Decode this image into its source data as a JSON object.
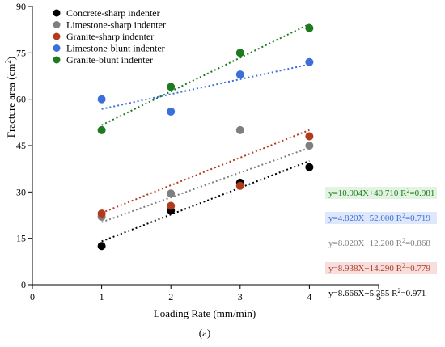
{
  "chart_data": {
    "type": "scatter",
    "xlabel": "Loading Rate (mm/min)",
    "ylabel_main": "Fracture area (cm",
    "ylabel_sup": "2",
    "ylabel_tail": ")",
    "caption": "(a)",
    "xlim": [
      0,
      5
    ],
    "ylim": [
      0,
      90
    ],
    "x_ticks": [
      0,
      1,
      2,
      3,
      4,
      5
    ],
    "y_ticks": [
      0,
      15,
      30,
      45,
      60,
      75,
      90
    ],
    "grid": false,
    "legend_position": "top-left",
    "series": [
      {
        "name": "Concrete-sharp indenter",
        "color": "#000000",
        "x": [
          1,
          2,
          3,
          4
        ],
        "y": [
          12.5,
          24,
          33,
          38
        ],
        "fit": {
          "slope": 8.666,
          "intercept": 5.355,
          "equation": "y=8.666X+5.355",
          "r2_label": "R",
          "r2_sup": "2",
          "r2_value": "=0.971",
          "label_bg": "none"
        }
      },
      {
        "name": "Limestone-sharp indenter",
        "color": "#7f7f7f",
        "x": [
          1,
          2,
          3,
          4
        ],
        "y": [
          22,
          29.5,
          50,
          45
        ],
        "fit": {
          "slope": 8.02,
          "intercept": 12.2,
          "equation": "y=8.020X+12.200",
          "r2_label": "R",
          "r2_sup": "2",
          "r2_value": "=0.868",
          "label_bg": "none"
        }
      },
      {
        "name": "Granite-sharp indenter",
        "color": "#b23b1e",
        "x": [
          1,
          2,
          3,
          4
        ],
        "y": [
          23,
          25.5,
          32,
          48
        ],
        "fit": {
          "slope": 8.938,
          "intercept": 14.29,
          "equation": "y=8.938X+14.290",
          "r2_label": "R",
          "r2_sup": "2",
          "r2_value": "=0.779",
          "label_bg": "#f7dede"
        }
      },
      {
        "name": "Limestone-blunt indenter",
        "color": "#3b6fd9",
        "x": [
          1,
          2,
          3,
          4
        ],
        "y": [
          60,
          56,
          68,
          72
        ],
        "fit": {
          "slope": 4.82,
          "intercept": 52.0,
          "equation": "y=4.820X+52.000",
          "r2_label": "R",
          "r2_sup": "2",
          "r2_value": "=0.719",
          "label_bg": "#dfe8fa"
        }
      },
      {
        "name": "Granite-blunt indenter",
        "color": "#1e7a1e",
        "x": [
          1,
          2,
          3,
          4
        ],
        "y": [
          50,
          64,
          75,
          83
        ],
        "fit": {
          "slope": 10.904,
          "intercept": 40.71,
          "equation": "y=10.904X+40.710",
          "r2_label": "R",
          "r2_sup": "2",
          "r2_value": "=0.981",
          "label_bg": "#e2f3e2"
        }
      }
    ],
    "equation_order": [
      4,
      3,
      1,
      2,
      0
    ]
  }
}
